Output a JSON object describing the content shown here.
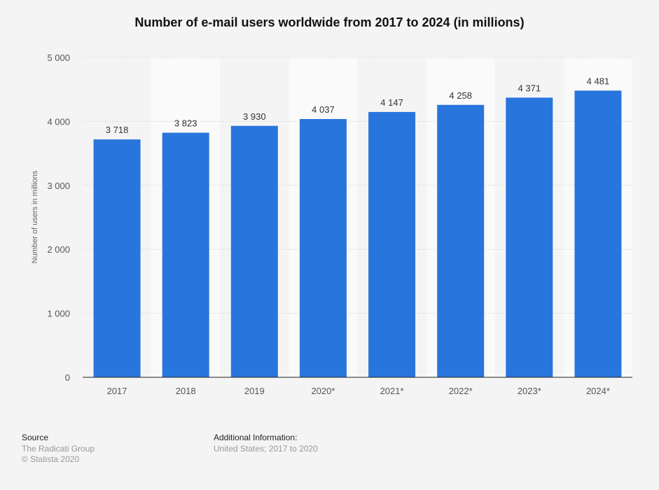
{
  "chart_data": {
    "type": "bar",
    "title": "Number of e-mail users worldwide from 2017 to 2024 (in millions)",
    "xlabel": "",
    "ylabel": "Number of users in millions",
    "categories": [
      "2017",
      "2018",
      "2019",
      "2020*",
      "2021*",
      "2022*",
      "2023*",
      "2024*"
    ],
    "values": [
      3718,
      3823,
      3930,
      4037,
      4147,
      4258,
      4371,
      4481
    ],
    "value_labels": [
      "3 718",
      "3 823",
      "3 930",
      "4 037",
      "4 147",
      "4 258",
      "4 371",
      "4 481"
    ],
    "ylim": [
      0,
      5000
    ],
    "yticks": [
      0,
      1000,
      2000,
      3000,
      4000,
      5000
    ],
    "ytick_labels": [
      "0",
      "1 000",
      "2 000",
      "3 000",
      "4 000",
      "5 000"
    ],
    "grid": true,
    "bar_color": "#2876dd"
  },
  "footer": {
    "source_heading": "Source",
    "source_lines": [
      "The Radicati Group",
      "© Statista 2020"
    ],
    "info_heading": "Additional Information:",
    "info_text": "United States; 2017 to 2020"
  }
}
